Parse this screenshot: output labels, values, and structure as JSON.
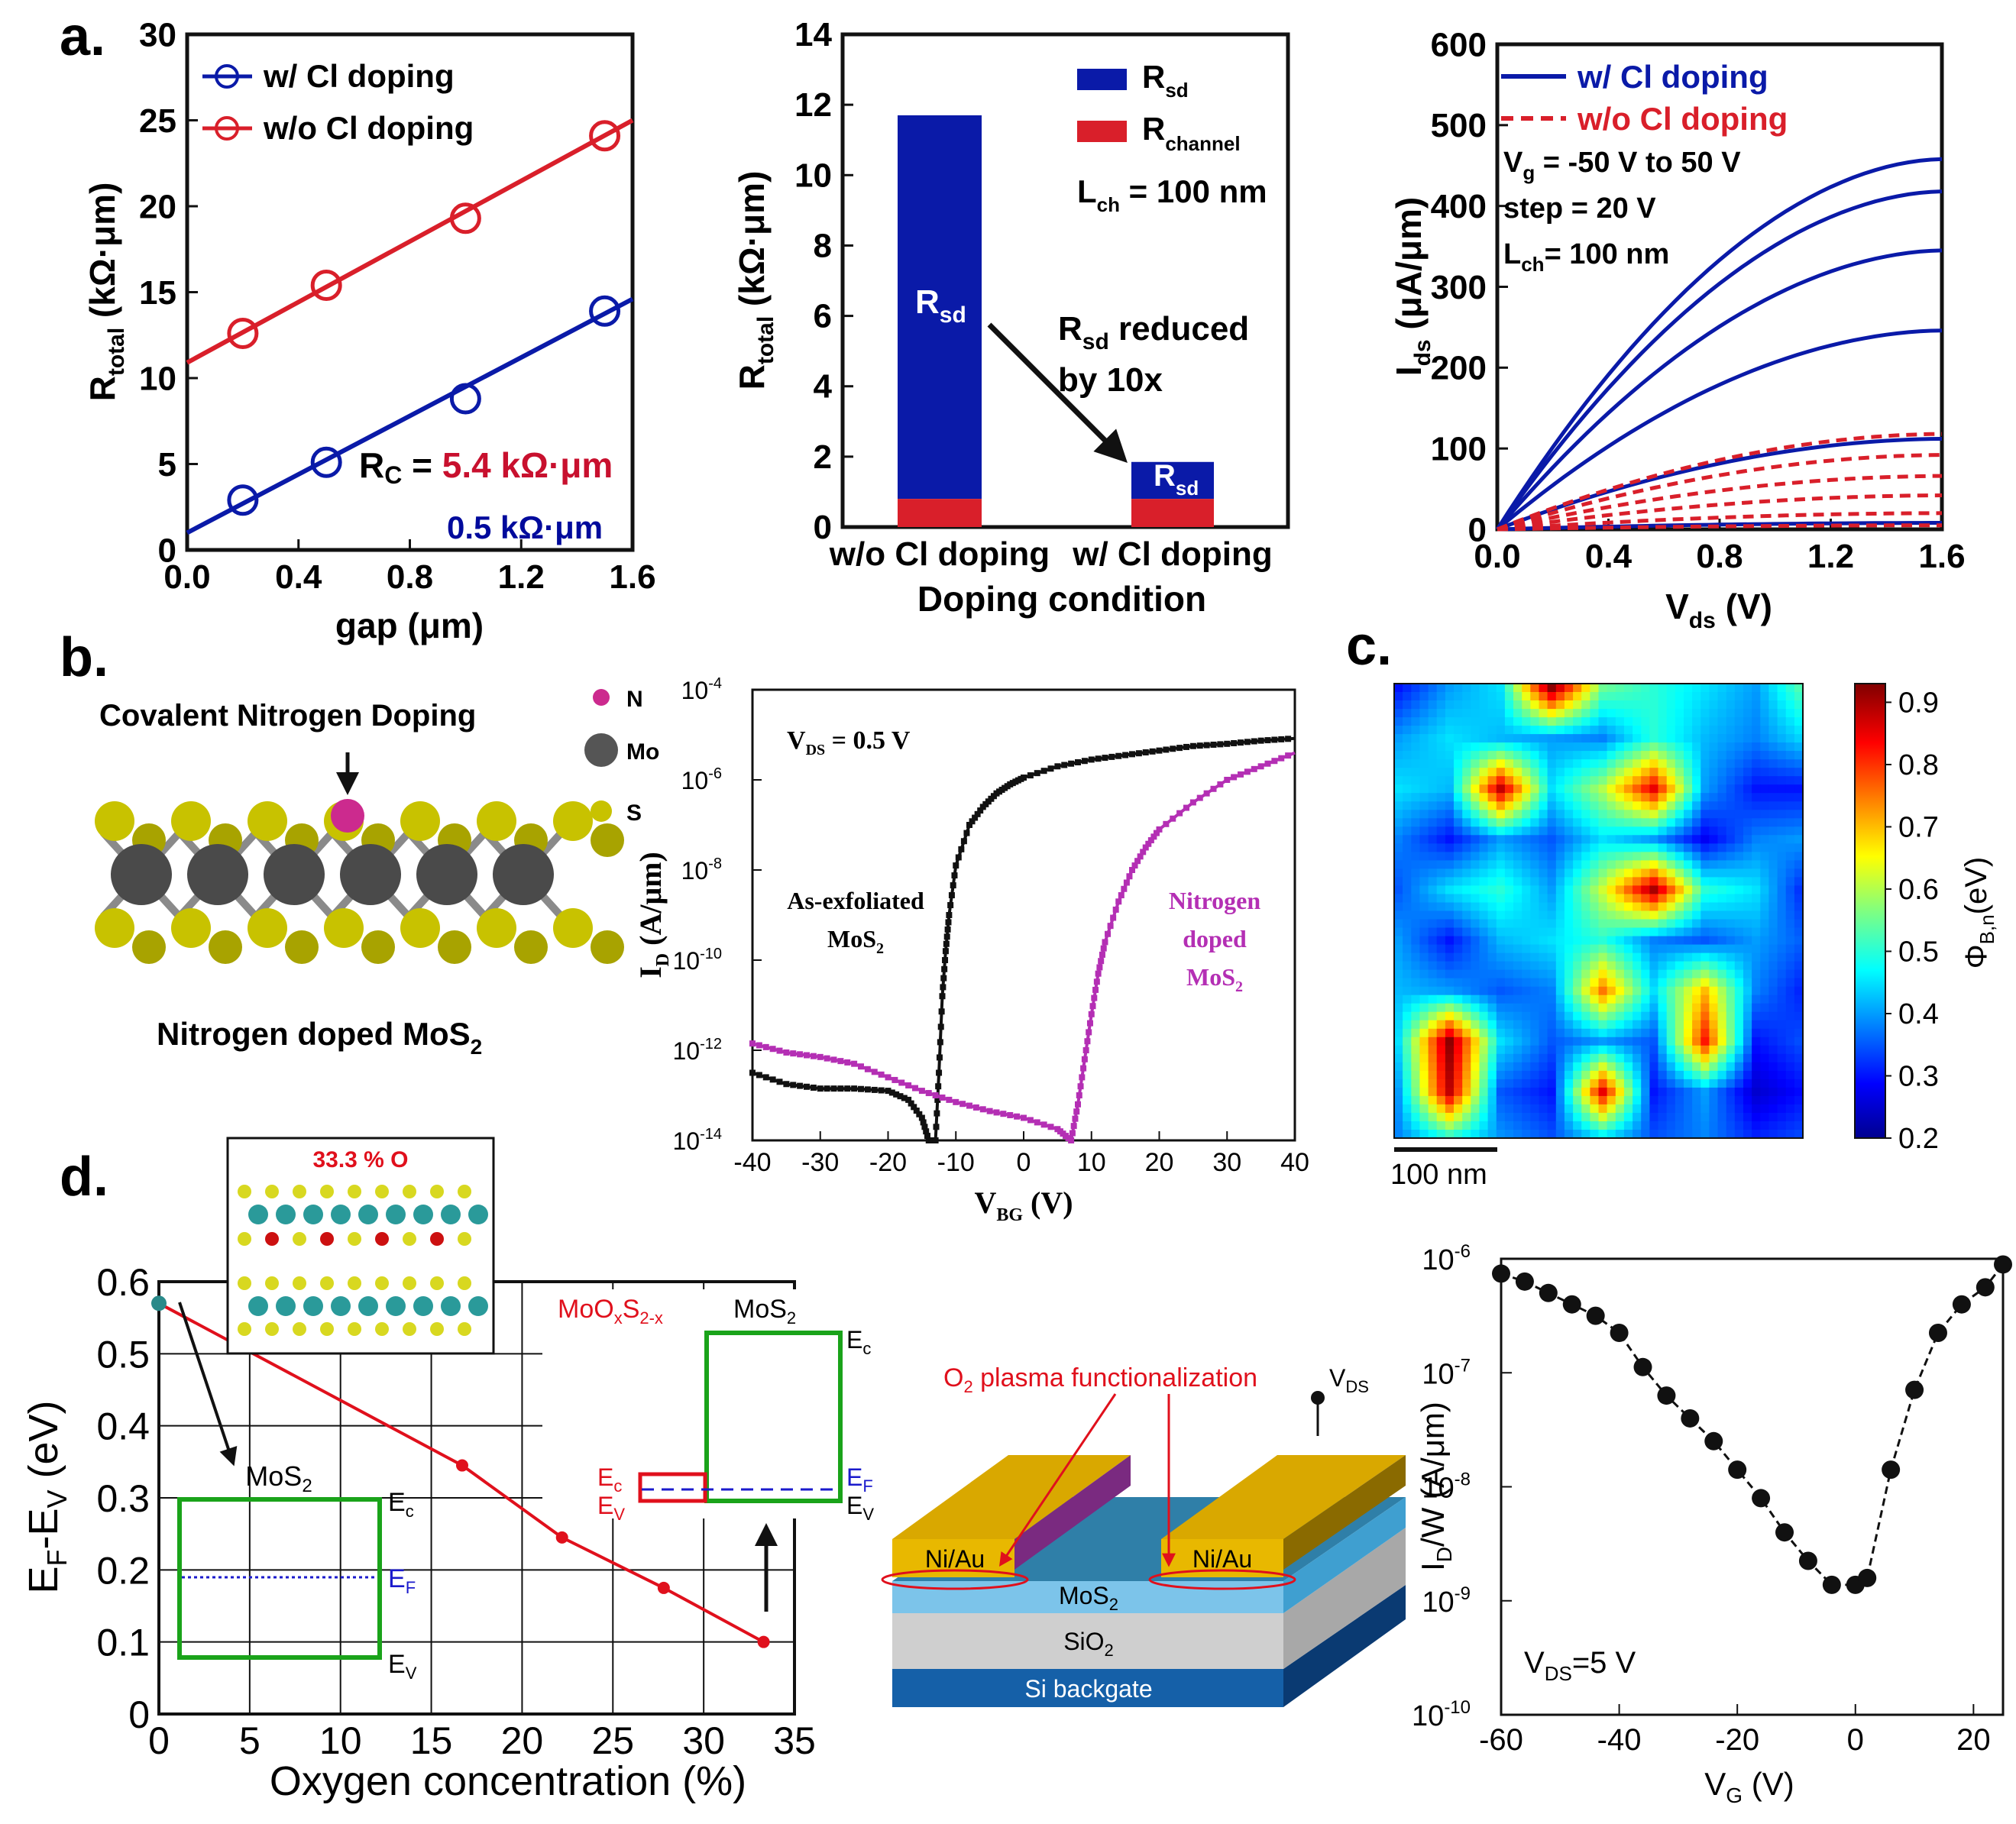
{
  "colors": {
    "blue": "#0a1aa8",
    "red": "#d91f2a",
    "magenta": "#b42fb4",
    "green": "#1aa31a",
    "black": "#111111",
    "darkblue": "#000a9c",
    "darkred": "#c8102e"
  },
  "panel_labels": {
    "a": "a.",
    "b": "b.",
    "c": "c.",
    "d": "d."
  },
  "chart_data": [
    {
      "id": "a1",
      "type": "scatter",
      "xlabel": "gap (μm)",
      "ylabel_main": "R",
      "ylabel_sub": "total",
      "ylabel_unit": " (kΩ·μm)",
      "xlim": [
        0,
        1.6
      ],
      "ylim": [
        0,
        30
      ],
      "xticks": [
        "0.0",
        "0.4",
        "0.8",
        "1.2",
        "1.6"
      ],
      "yticks": [
        "0",
        "5",
        "10",
        "15",
        "20",
        "25",
        "30"
      ],
      "series": [
        {
          "name": "w/ Cl doping",
          "x": [
            0.2,
            0.5,
            1.0,
            1.5
          ],
          "y": [
            2.9,
            5.1,
            8.8,
            13.9
          ],
          "fit": [
            [
              0,
              1.0
            ],
            [
              1.6,
              14.6
            ]
          ]
        },
        {
          "name": "w/o Cl doping",
          "x": [
            0.2,
            0.5,
            1.0,
            1.5
          ],
          "y": [
            12.6,
            15.4,
            19.3,
            24.1
          ],
          "fit": [
            [
              0,
              10.9
            ],
            [
              1.6,
              25.0
            ]
          ]
        }
      ],
      "annotation": {
        "rc_label": "R",
        "rc_sub": "C",
        "rc_eq": " = ",
        "rc_red": "5.4 kΩ·μm",
        "rc_blue": "0.5 kΩ·μm"
      }
    },
    {
      "id": "a2",
      "type": "bar",
      "xlabel": "Doping condition",
      "ylabel_main": "R",
      "ylabel_sub": "total",
      "ylabel_unit": " (kΩ·μm)",
      "ylim": [
        0,
        14
      ],
      "yticks": [
        "0",
        "2",
        "4",
        "6",
        "8",
        "10",
        "12",
        "14"
      ],
      "categories": [
        "w/o Cl doping",
        "w/ Cl doping"
      ],
      "series": [
        {
          "name": "R_channel",
          "legend_main": "R",
          "legend_sub": "channel",
          "values": [
            0.8,
            0.8
          ]
        },
        {
          "name": "R_sd",
          "legend_main": "R",
          "legend_sub": "sd",
          "values": [
            10.9,
            1.05
          ]
        }
      ],
      "lch": {
        "main": "L",
        "sub": "ch",
        "rest": " = 100 nm"
      },
      "bar_label": {
        "main": "R",
        "sub": "sd"
      },
      "arrow_text": {
        "l1_main": "R",
        "l1_sub": "sd",
        "l1_rest": " reduced",
        "l2": "by 10x"
      }
    },
    {
      "id": "a3",
      "type": "line",
      "xlabel_main": "V",
      "xlabel_sub": "ds",
      "xlabel_unit": " (V)",
      "ylabel_main": "I",
      "ylabel_sub": "ds",
      "ylabel_unit": " (μA/μm)",
      "xlim": [
        0,
        1.6
      ],
      "ylim": [
        0,
        600
      ],
      "xticks": [
        "0.0",
        "0.4",
        "0.8",
        "1.2",
        "1.6"
      ],
      "yticks": [
        "0",
        "100",
        "200",
        "300",
        "400",
        "500",
        "600"
      ],
      "legend": [
        "w/ Cl doping",
        "w/o Cl doping"
      ],
      "notes": {
        "vg_main": "V",
        "vg_sub": "g",
        "vg_rest": " = -50 V to 50 V",
        "step": "step = 20 V",
        "lch_main": "L",
        "lch_sub": "ch",
        "lch_rest": "= 100 nm"
      },
      "blue_final": [
        458,
        418,
        345,
        246,
        112,
        8
      ],
      "red_final": [
        118,
        92,
        66,
        42,
        20,
        5
      ]
    },
    {
      "id": "b2",
      "type": "line",
      "yscale": "log",
      "xlabel_main": "V",
      "xlabel_sub": "BG",
      "xlabel_unit": " (V)",
      "ylabel_main": "I",
      "ylabel_sub": "D",
      "ylabel_unit": " (A/μm)",
      "xlim": [
        -40,
        40
      ],
      "ylim_exp": [
        -14,
        -4
      ],
      "xticks": [
        "-40",
        "-30",
        "-20",
        "-10",
        "0",
        "10",
        "20",
        "30",
        "40"
      ],
      "yticks_exp": [
        "-14",
        "-12",
        "-10",
        "-8",
        "-6",
        "-4"
      ],
      "vds_main": "V",
      "vds_sub": "DS",
      "vds_rest": " = 0.5 V",
      "series": [
        {
          "name": "As-exfoliated MoS2",
          "label_l1": "As-exfoliated",
          "label_l2_main": "MoS",
          "label_l2_sub": "2",
          "x": [
            -40,
            -35,
            -30,
            -25,
            -20,
            -17,
            -15,
            -14,
            -13,
            -12.5,
            -12,
            -11.5,
            -11,
            -10,
            -8,
            -6,
            -4,
            -2,
            0,
            5,
            10,
            15,
            20,
            25,
            30,
            35,
            40
          ],
          "logy": [
            -12.5,
            -12.75,
            -12.85,
            -12.85,
            -12.9,
            -13.1,
            -13.5,
            -14,
            -14,
            -12.5,
            -10.8,
            -9.8,
            -9,
            -7.9,
            -7.0,
            -6.6,
            -6.3,
            -6.1,
            -5.95,
            -5.7,
            -5.55,
            -5.45,
            -5.35,
            -5.25,
            -5.2,
            -5.13,
            -5.08
          ]
        },
        {
          "name": "Nitrogen doped MoS2",
          "label_l1": "Nitrogen",
          "label_l2": "doped",
          "label_l3_main": "MoS",
          "label_l3_sub": "2",
          "x": [
            -40,
            -35,
            -30,
            -25,
            -20,
            -15,
            -10,
            -5,
            0,
            5,
            7,
            8,
            9,
            10,
            11,
            12,
            14,
            16,
            18,
            20,
            25,
            30,
            35,
            40
          ],
          "logy": [
            -11.85,
            -12.05,
            -12.15,
            -12.3,
            -12.6,
            -12.9,
            -13.15,
            -13.35,
            -13.5,
            -13.75,
            -14,
            -13.2,
            -12.2,
            -11.2,
            -10.3,
            -9.6,
            -8.7,
            -8.0,
            -7.5,
            -7.1,
            -6.5,
            -6.0,
            -5.7,
            -5.4
          ]
        }
      ]
    },
    {
      "id": "c",
      "type": "heatmap",
      "colorbar_ticks": [
        "0.2",
        "0.3",
        "0.4",
        "0.5",
        "0.6",
        "0.7",
        "0.8",
        "0.9"
      ],
      "colorbar_label_main": "Φ",
      "colorbar_label_sub": "B,n",
      "colorbar_label_unit": "(eV)",
      "vmin": 0.2,
      "vmax": 0.93,
      "scalebar": "100 nm",
      "grid": [
        [
          0.3,
          0.4,
          0.45,
          0.92,
          0.55,
          0.5,
          0.45,
          0.4,
          0.55
        ],
        [
          0.4,
          0.45,
          0.42,
          0.4,
          0.38,
          0.5,
          0.42,
          0.38,
          0.45
        ],
        [
          0.45,
          0.42,
          0.88,
          0.45,
          0.6,
          0.85,
          0.4,
          0.3,
          0.3
        ],
        [
          0.38,
          0.3,
          0.4,
          0.35,
          0.45,
          0.4,
          0.28,
          0.38,
          0.4
        ],
        [
          0.35,
          0.45,
          0.5,
          0.4,
          0.62,
          0.9,
          0.5,
          0.45,
          0.3
        ],
        [
          0.4,
          0.3,
          0.42,
          0.45,
          0.5,
          0.38,
          0.35,
          0.4,
          0.35
        ],
        [
          0.42,
          0.4,
          0.35,
          0.38,
          0.75,
          0.45,
          0.7,
          0.38,
          0.3
        ],
        [
          0.45,
          0.92,
          0.45,
          0.35,
          0.4,
          0.35,
          0.82,
          0.3,
          0.35
        ],
        [
          0.4,
          0.88,
          0.35,
          0.3,
          0.85,
          0.3,
          0.4,
          0.25,
          0.3
        ],
        [
          0.38,
          0.45,
          0.4,
          0.35,
          0.4,
          0.35,
          0.38,
          0.32,
          0.35
        ]
      ]
    },
    {
      "id": "d1",
      "type": "line",
      "xlabel": "Oxygen concentration (%)",
      "ylabel_l1": "E",
      "ylabel_s1": "F",
      "ylabel_mid": "-E",
      "ylabel_s2": "V",
      "ylabel_unit": " (eV)",
      "xlim": [
        0,
        35
      ],
      "ylim": [
        0,
        0.6
      ],
      "xticks": [
        "0",
        "5",
        "10",
        "15",
        "20",
        "25",
        "30",
        "35"
      ],
      "yticks": [
        "0",
        "0.1",
        "0.2",
        "0.3",
        "0.4",
        "0.5",
        "0.6"
      ],
      "x": [
        0,
        16.7,
        22.2,
        27.8,
        33.3
      ],
      "y": [
        0.57,
        0.345,
        0.245,
        0.175,
        0.1
      ],
      "inset_label": "33.3 % O",
      "band_mos2": {
        "main": "MoS",
        "sub": "2",
        "ec": "E",
        "ec_s": "c",
        "ef": "E",
        "ef_s": "F",
        "ev": "E",
        "ev_s": "V"
      },
      "band_moox": {
        "main": "MoO",
        "sub1": "x",
        "mid": "S",
        "sub2": "2-x"
      }
    },
    {
      "id": "d2",
      "type": "diagram",
      "plasma": "O",
      "plasma_sub": "2",
      "plasma_rest": " plasma functionalization",
      "vds_main": "V",
      "vds_sub": "DS",
      "contact_left": "Ni/Au",
      "contact_right": "Ni/Au",
      "mos2_main": "MoS",
      "mos2_sub": "2",
      "sio2_main": "SiO",
      "sio2_sub": "2",
      "si": "Si backgate"
    },
    {
      "id": "d3",
      "type": "scatter",
      "yscale": "log",
      "xlabel_main": "V",
      "xlabel_sub": "G",
      "xlabel_unit": " (V)",
      "ylabel_main": "I",
      "ylabel_sub": "D",
      "ylabel_unit": "/W (A/μm)",
      "xlim": [
        -60,
        25
      ],
      "ylim_exp": [
        -10,
        -6
      ],
      "xticks": [
        "-60",
        "-40",
        "-20",
        "0",
        "20"
      ],
      "yticks_exp": [
        "-10",
        "-9",
        "-8",
        "-7",
        "-6"
      ],
      "vds_main": "V",
      "vds_sub": "DS",
      "vds_rest": "=5 V",
      "x": [
        -60,
        -56,
        -52,
        -48,
        -44,
        -40,
        -36,
        -32,
        -28,
        -24,
        -20,
        -16,
        -12,
        -8,
        -4,
        0,
        2,
        6,
        10,
        14,
        18,
        22,
        25
      ],
      "logy": [
        -6.13,
        -6.2,
        -6.3,
        -6.4,
        -6.5,
        -6.65,
        -6.95,
        -7.2,
        -7.4,
        -7.6,
        -7.85,
        -8.1,
        -8.4,
        -8.65,
        -8.86,
        -8.86,
        -8.8,
        -7.85,
        -7.15,
        -6.65,
        -6.4,
        -6.25,
        -6.05
      ]
    }
  ]
}
